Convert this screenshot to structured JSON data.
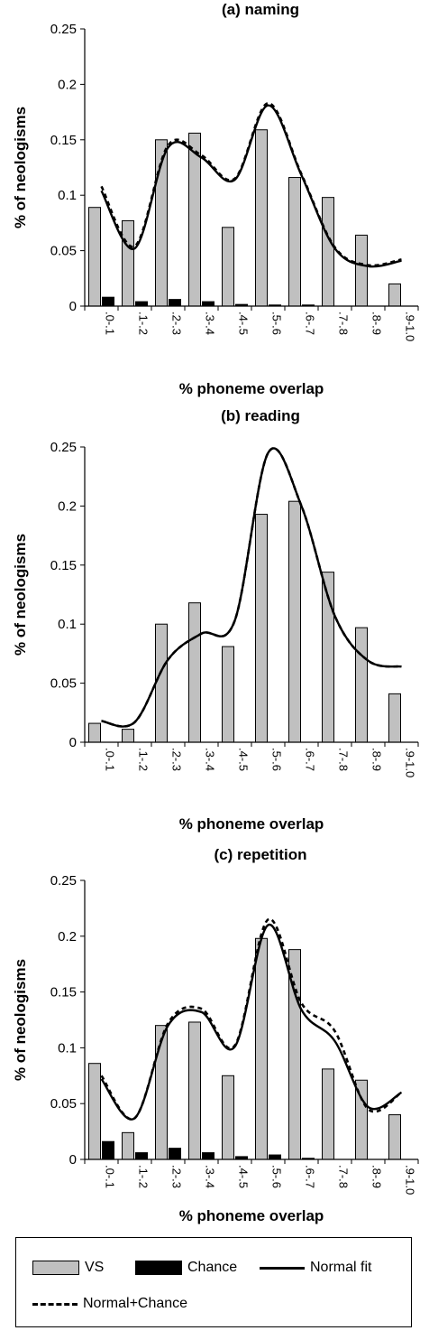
{
  "chart_data": [
    {
      "type": "bar",
      "title": "(a) naming",
      "xlabel": "% phoneme overlap",
      "ylabel": "% of neologisms",
      "ylim": [
        0,
        0.25
      ],
      "yticks": [
        "0",
        "0.05",
        "0.1",
        "0.15",
        "0.2",
        "0.25"
      ],
      "categories": [
        ".0-.1",
        ".1-.2",
        ".2-.3",
        ".3-.4",
        ".4-.5",
        ".5-.6",
        ".6-.7",
        ".7-.8",
        ".8-.9",
        ".9-1.0"
      ],
      "series": [
        {
          "name": "VS",
          "kind": "bar",
          "values": [
            0.089,
            0.077,
            0.15,
            0.156,
            0.071,
            0.159,
            0.116,
            0.098,
            0.064,
            0.02
          ]
        },
        {
          "name": "Chance",
          "kind": "bar",
          "values": [
            0.008,
            0.004,
            0.006,
            0.004,
            0.0015,
            0.001,
            0.001,
            0,
            0,
            0
          ]
        },
        {
          "name": "Normal fit",
          "kind": "line",
          "values": [
            0.104,
            0.052,
            0.143,
            0.134,
            0.114,
            0.181,
            0.118,
            0.052,
            0.036,
            0.041
          ]
        },
        {
          "name": "Normal+Chance",
          "kind": "line",
          "values": [
            0.108,
            0.054,
            0.145,
            0.136,
            0.115,
            0.183,
            0.119,
            0.053,
            0.037,
            0.042
          ]
        }
      ]
    },
    {
      "type": "bar",
      "title": "(b) reading",
      "xlabel": "% phoneme overlap",
      "ylabel": "% of neologisms",
      "ylim": [
        0,
        0.25
      ],
      "yticks": [
        "0",
        "0.05",
        "0.1",
        "0.15",
        "0.2",
        "0.25"
      ],
      "categories": [
        ".0-.1",
        ".1-.2",
        ".2-.3",
        ".3-.4",
        ".4-.5",
        ".5-.6",
        ".6-.7",
        ".7-.8",
        ".8-.9",
        ".9-1.0"
      ],
      "series": [
        {
          "name": "VS",
          "kind": "bar",
          "values": [
            0.016,
            0.011,
            0.1,
            0.118,
            0.081,
            0.193,
            0.204,
            0.144,
            0.097,
            0.041
          ]
        },
        {
          "name": "Chance",
          "kind": "bar",
          "values": [
            0,
            0,
            0,
            0,
            0,
            0,
            0,
            0,
            0,
            0
          ]
        },
        {
          "name": "Normal fit",
          "kind": "line",
          "values": [
            0.018,
            0.017,
            0.07,
            0.092,
            0.103,
            0.245,
            0.2,
            0.107,
            0.069,
            0.064
          ]
        },
        {
          "name": "Normal+Chance",
          "kind": "line",
          "values": [
            0.018,
            0.017,
            0.07,
            0.092,
            0.103,
            0.245,
            0.2,
            0.107,
            0.069,
            0.064
          ]
        }
      ]
    },
    {
      "type": "bar",
      "title": "(c) repetition",
      "xlabel": "% phoneme overlap",
      "ylabel": "% of neologisms",
      "ylim": [
        0,
        0.25
      ],
      "yticks": [
        "0",
        "0.05",
        "0.1",
        "0.15",
        "0.2",
        "0.25"
      ],
      "categories": [
        ".0-.1",
        ".1-.2",
        ".2-.3",
        ".3-.4",
        ".4-.5",
        ".5-.6",
        ".6-.7",
        ".7-.8",
        ".8-.9",
        ".9-1.0"
      ],
      "series": [
        {
          "name": "VS",
          "kind": "bar",
          "values": [
            0.086,
            0.024,
            0.12,
            0.123,
            0.075,
            0.198,
            0.188,
            0.081,
            0.071,
            0.04
          ]
        },
        {
          "name": "Chance",
          "kind": "bar",
          "values": [
            0.016,
            0.006,
            0.01,
            0.006,
            0.0025,
            0.004,
            0.001,
            0,
            0,
            0
          ]
        },
        {
          "name": "Normal fit",
          "kind": "line",
          "values": [
            0.072,
            0.037,
            0.12,
            0.132,
            0.101,
            0.21,
            0.134,
            0.106,
            0.047,
            0.06
          ]
        },
        {
          "name": "Normal+Chance",
          "kind": "line",
          "values": [
            0.075,
            0.037,
            0.122,
            0.135,
            0.102,
            0.215,
            0.14,
            0.115,
            0.045,
            0.06
          ]
        }
      ]
    }
  ],
  "legend": {
    "vs_label": "VS",
    "chance_label": "Chance",
    "normal_fit_label": "Normal fit",
    "normal_chance_label": "Normal+Chance"
  },
  "colors": {
    "vs": "#c0c0c0",
    "chance": "#000000",
    "line": "#000000"
  }
}
